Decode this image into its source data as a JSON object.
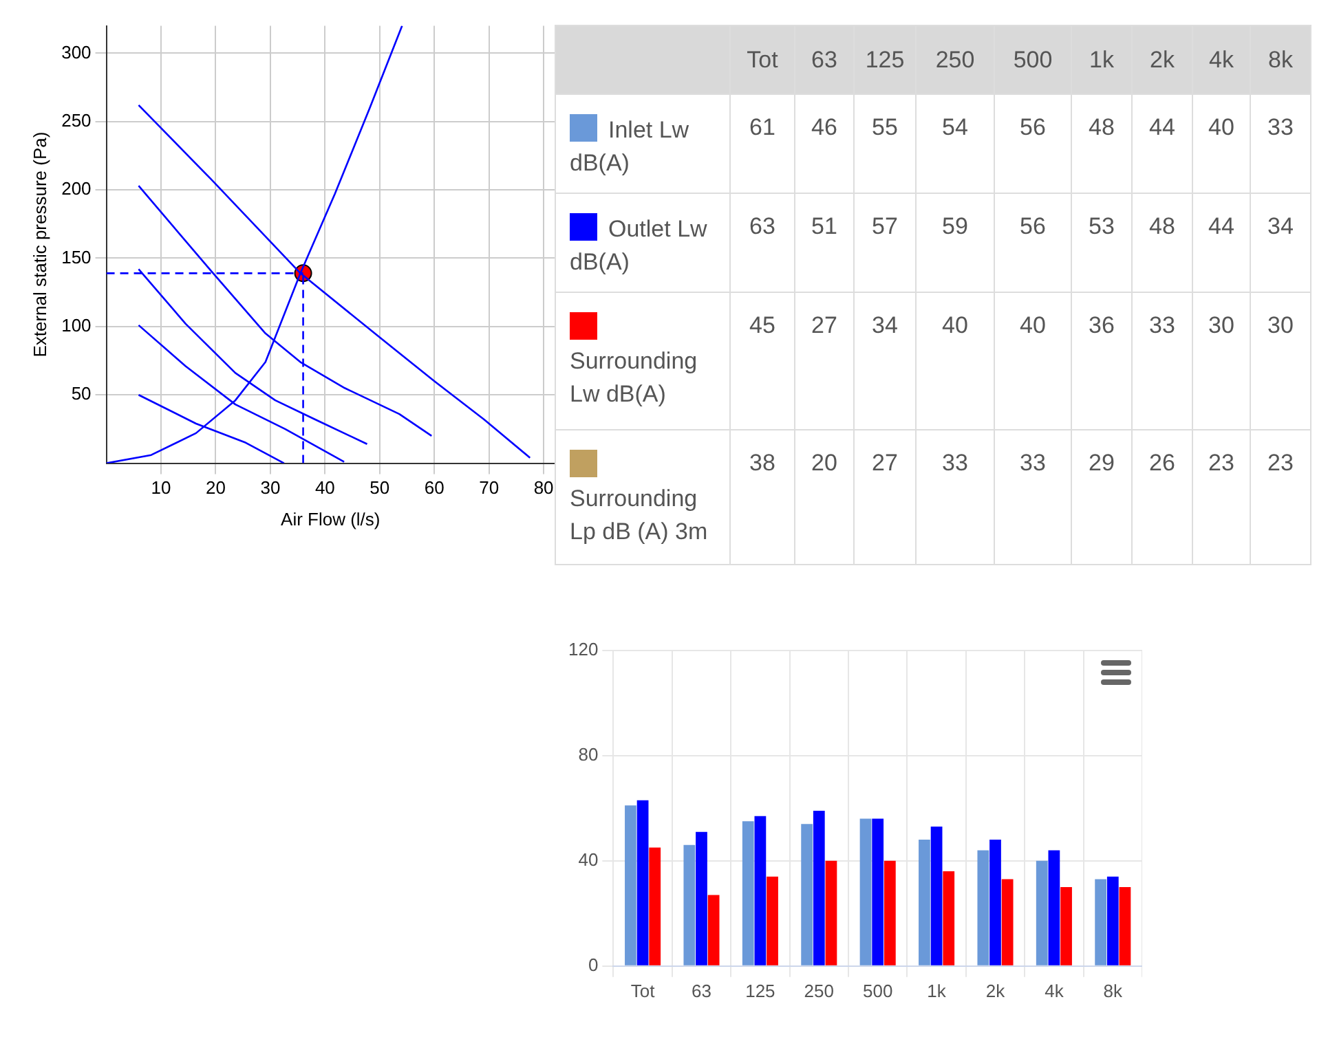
{
  "chart_data": [
    {
      "type": "line",
      "xlabel": "Air Flow (l/s)",
      "ylabel": "External static pressure (Pa)",
      "xlim": [
        0,
        82
      ],
      "ylim": [
        0,
        320
      ],
      "xticks": [
        10,
        20,
        30,
        40,
        50,
        60,
        70,
        80
      ],
      "yticks": [
        50,
        100,
        150,
        200,
        250,
        300
      ],
      "grid": true,
      "legend": false,
      "marker": "none",
      "line_style": "solid",
      "series": [
        {
          "color": "#0000ff",
          "x": [
            5.9,
            19.1,
            35.5,
            49.1,
            60,
            69.1,
            77.5
          ],
          "values": [
            262,
            208,
            139,
            95,
            60,
            32,
            4
          ]
        },
        {
          "color": "#0000ff",
          "x": [
            5.9,
            19.1,
            29.1,
            35.5,
            43.6,
            53.6,
            59.5
          ],
          "values": [
            203,
            141,
            95,
            74,
            55,
            36,
            20
          ]
        },
        {
          "color": "#0000ff",
          "x": [
            5.9,
            14.5,
            23.6,
            30.9,
            38.2,
            47.7
          ],
          "values": [
            142,
            102,
            66,
            46,
            32,
            14
          ]
        },
        {
          "color": "#0000ff",
          "x": [
            5.9,
            14.5,
            23.6,
            32.7,
            43.5
          ],
          "values": [
            101,
            71,
            43,
            25,
            1
          ]
        },
        {
          "color": "#0000ff",
          "x": [
            5.9,
            16.4,
            25.5,
            32.5
          ],
          "values": [
            50,
            29,
            15,
            0
          ]
        },
        {
          "color": "#0000ff",
          "x": [
            0,
            8.2,
            16.4,
            23.6,
            29.1,
            35.5,
            41.8,
            48.2,
            54.1
          ],
          "values": [
            0,
            6,
            22,
            46,
            74,
            139,
            197,
            260,
            320
          ]
        },
        {
          "color": "#0000ff",
          "line_style": "dashed",
          "x": [
            0,
            36
          ],
          "values": [
            139,
            139
          ]
        },
        {
          "color": "#0000ff",
          "line_style": "dashed",
          "x": [
            36,
            36
          ],
          "values": [
            0,
            139
          ]
        },
        {
          "type": "scatter",
          "marker": "circle",
          "color": "#ff0000",
          "x": [
            36
          ],
          "values": [
            139
          ]
        }
      ]
    },
    {
      "type": "heatmap",
      "categories": [
        "Tot",
        "63",
        "125",
        "250",
        "500",
        "1k",
        "2k",
        "4k",
        "8k"
      ],
      "y_categories": [
        "Inlet Lw dB(A)",
        "Outlet Lw dB(A)",
        "Surrounding Lw dB(A)",
        "Surrounding Lp dB (A) 3m"
      ],
      "colors": [
        "#6a99d9",
        "#0000ff",
        "#ff0000",
        "#c0a060"
      ],
      "data_labels": true,
      "cells": [
        [
          61,
          46,
          55,
          54,
          56,
          48,
          44,
          40,
          33
        ],
        [
          63,
          51,
          57,
          59,
          56,
          53,
          48,
          44,
          34
        ],
        [
          45,
          27,
          34,
          40,
          40,
          36,
          33,
          30,
          30
        ],
        [
          38,
          20,
          27,
          33,
          33,
          29,
          26,
          23,
          23
        ]
      ]
    },
    {
      "type": "bar",
      "categories": [
        "Tot",
        "63",
        "125",
        "250",
        "500",
        "1k",
        "2k",
        "4k",
        "8k"
      ],
      "ylim": [
        0,
        120
      ],
      "yticks": [
        0,
        40,
        80,
        120
      ],
      "grid": true,
      "legend": false,
      "series": [
        {
          "color": "#6a99d9",
          "values": [
            61,
            46,
            55,
            54,
            56,
            48,
            44,
            40,
            33
          ]
        },
        {
          "color": "#0000ff",
          "values": [
            63,
            51,
            57,
            59,
            56,
            53,
            48,
            44,
            34
          ]
        },
        {
          "color": "#ff0000",
          "values": [
            45,
            27,
            34,
            40,
            40,
            36,
            33,
            30,
            30
          ]
        }
      ]
    }
  ]
}
